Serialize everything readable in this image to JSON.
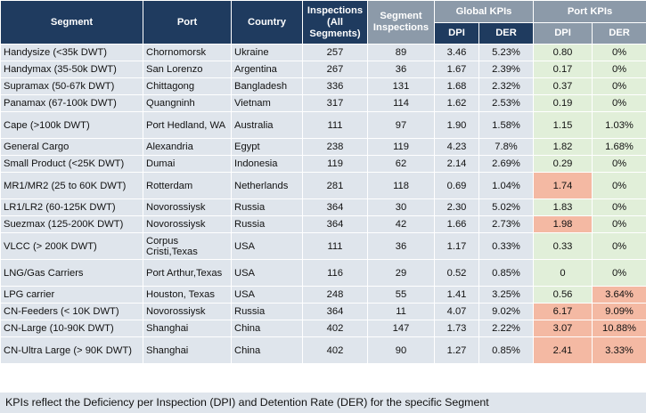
{
  "headers": {
    "segment": "Segment",
    "port": "Port",
    "country": "Country",
    "inspections_all": "Inspections (All Segments)",
    "segment_inspections": "Segment Inspections",
    "global_kpis": "Global KPIs",
    "port_kpis": "Port KPIs",
    "dpi": "DPI",
    "der": "DER"
  },
  "rows": [
    {
      "segment": "Handysize (<35k DWT)",
      "port": "Chornomorsk",
      "country": "Ukraine",
      "insp_all": "257",
      "seg_insp": "89",
      "g_dpi": "3.46",
      "g_der": "5.23%",
      "p_dpi": "0.80",
      "p_der": "0%",
      "dpi_flag": "green",
      "der_flag": "green"
    },
    {
      "segment": "Handymax (35-50k DWT)",
      "port": "San Lorenzo",
      "country": "Argentina",
      "insp_all": "267",
      "seg_insp": "36",
      "g_dpi": "1.67",
      "g_der": "2.39%",
      "p_dpi": "0.17",
      "p_der": "0%",
      "dpi_flag": "green",
      "der_flag": "green"
    },
    {
      "segment": "Supramax (50-67k DWT)",
      "port": "Chittagong",
      "country": "Bangladesh",
      "insp_all": "336",
      "seg_insp": "131",
      "g_dpi": "1.68",
      "g_der": "2.32%",
      "p_dpi": "0.37",
      "p_der": "0%",
      "dpi_flag": "green",
      "der_flag": "green"
    },
    {
      "segment": "Panamax (67-100k DWT)",
      "port": "Quangninh",
      "country": "Vietnam",
      "insp_all": "317",
      "seg_insp": "114",
      "g_dpi": "1.62",
      "g_der": "2.53%",
      "p_dpi": "0.19",
      "p_der": "0%",
      "dpi_flag": "green",
      "der_flag": "green"
    },
    {
      "segment": "Cape (>100k DWT)",
      "port": "Port Hedland, WA",
      "country": "Australia",
      "insp_all": "111",
      "seg_insp": "97",
      "g_dpi": "1.90",
      "g_der": "1.58%",
      "p_dpi": "1.15",
      "p_der": "1.03%",
      "dpi_flag": "green",
      "der_flag": "green"
    },
    {
      "segment": "General Cargo",
      "port": "Alexandria",
      "country": "Egypt",
      "insp_all": "238",
      "seg_insp": "119",
      "g_dpi": "4.23",
      "g_der": "7.8%",
      "p_dpi": "1.82",
      "p_der": "1.68%",
      "dpi_flag": "green",
      "der_flag": "green"
    },
    {
      "segment": "Small Product (<25K DWT)",
      "port": "Dumai",
      "country": "Indonesia",
      "insp_all": "119",
      "seg_insp": "62",
      "g_dpi": "2.14",
      "g_der": "2.69%",
      "p_dpi": "0.29",
      "p_der": "0%",
      "dpi_flag": "green",
      "der_flag": "green"
    },
    {
      "segment": "MR1/MR2 (25 to 60K DWT)",
      "port": "Rotterdam",
      "country": "Netherlands",
      "insp_all": "281",
      "seg_insp": "118",
      "g_dpi": "0.69",
      "g_der": "1.04%",
      "p_dpi": "1.74",
      "p_der": "0%",
      "dpi_flag": "red",
      "der_flag": "green"
    },
    {
      "segment": "LR1/LR2 (60-125K DWT)",
      "port": "Novorossiysk",
      "country": "Russia",
      "insp_all": "364",
      "seg_insp": "30",
      "g_dpi": "2.30",
      "g_der": "5.02%",
      "p_dpi": "1.83",
      "p_der": "0%",
      "dpi_flag": "green",
      "der_flag": "green"
    },
    {
      "segment": "Suezmax (125-200K DWT)",
      "port": "Novorossiysk",
      "country": "Russia",
      "insp_all": "364",
      "seg_insp": "42",
      "g_dpi": "1.66",
      "g_der": "2.73%",
      "p_dpi": "1.98",
      "p_der": "0%",
      "dpi_flag": "red",
      "der_flag": "green"
    },
    {
      "segment": "VLCC (> 200K DWT)",
      "port": "Corpus Cristi,Texas",
      "country": "USA",
      "insp_all": "111",
      "seg_insp": "36",
      "g_dpi": "1.17",
      "g_der": "0.33%",
      "p_dpi": "0.33",
      "p_der": "0%",
      "dpi_flag": "green",
      "der_flag": "green"
    },
    {
      "segment": "LNG/Gas Carriers",
      "port": "Port Arthur,Texas",
      "country": "USA",
      "insp_all": "116",
      "seg_insp": "29",
      "g_dpi": "0.52",
      "g_der": "0.85%",
      "p_dpi": "0",
      "p_der": "0%",
      "dpi_flag": "green",
      "der_flag": "green"
    },
    {
      "segment": "LPG carrier",
      "port": "Houston, Texas",
      "country": "USA",
      "insp_all": "248",
      "seg_insp": "55",
      "g_dpi": "1.41",
      "g_der": "3.25%",
      "p_dpi": "0.56",
      "p_der": "3.64%",
      "dpi_flag": "green",
      "der_flag": "red"
    },
    {
      "segment": "CN-Feeders (< 10K DWT)",
      "port": "Novorossiysk",
      "country": "Russia",
      "insp_all": "364",
      "seg_insp": "11",
      "g_dpi": "4.07",
      "g_der": "9.02%",
      "p_dpi": "6.17",
      "p_der": "9.09%",
      "dpi_flag": "red",
      "der_flag": "red"
    },
    {
      "segment": "CN-Large (10-90K DWT)",
      "port": "Shanghai",
      "country": "China",
      "insp_all": "402",
      "seg_insp": "147",
      "g_dpi": "1.73",
      "g_der": "2.22%",
      "p_dpi": "3.07",
      "p_der": "10.88%",
      "dpi_flag": "red",
      "der_flag": "red"
    },
    {
      "segment": "CN-Ultra Large (> 90K DWT)",
      "port": "Shanghai",
      "country": "China",
      "insp_all": "402",
      "seg_insp": "90",
      "g_dpi": "1.27",
      "g_der": "0.85%",
      "p_dpi": "2.41",
      "p_der": "3.33%",
      "dpi_flag": "red",
      "der_flag": "red"
    }
  ],
  "colors": {
    "header_navy": "#1f3b5f",
    "header_grey": "#8c9aa9",
    "row_bg": "#dfe5ec",
    "good_green": "#e1efd9",
    "bad_red": "#f4b9a3"
  },
  "footer": "KPIs reflect the Deficiency per Inspection (DPI) and Detention Rate (DER) for the specific Segment"
}
